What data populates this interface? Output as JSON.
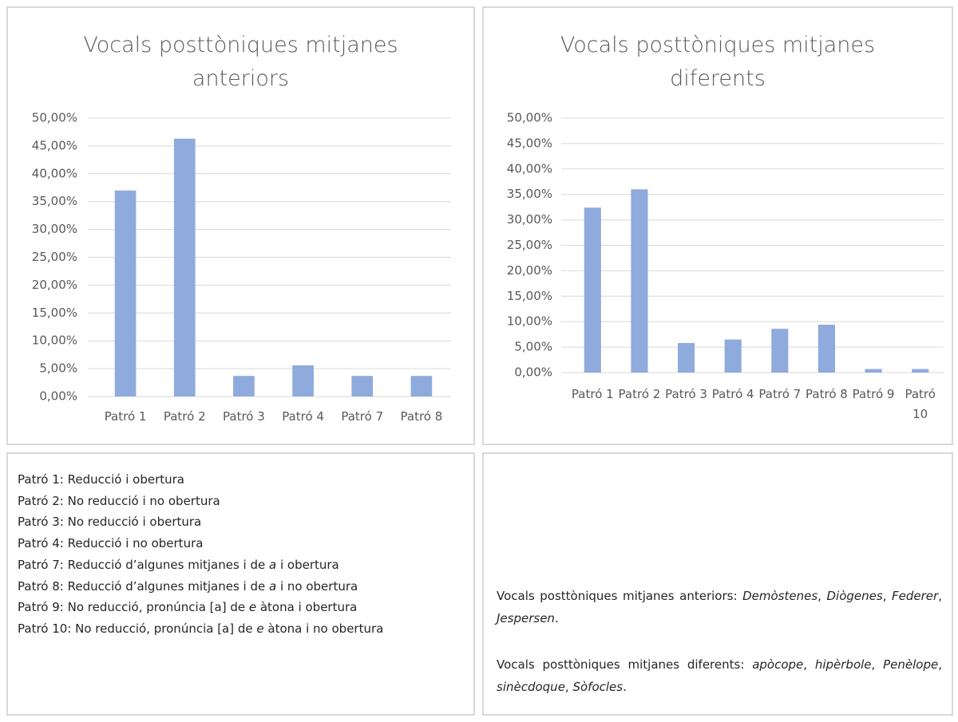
{
  "chart_data": [
    {
      "type": "bar",
      "title": "Vocals posttòniques mitjanes anteriors",
      "categories": [
        "Patró 1",
        "Patró 2",
        "Patró 3",
        "Patró 4",
        "Patró 7",
        "Patró 8"
      ],
      "values": [
        37.0,
        46.3,
        3.7,
        5.6,
        3.7,
        3.7
      ],
      "color": "#8faadc",
      "ylim": [
        0,
        50
      ],
      "yticks": [
        {
          "value": 0,
          "label": "0,00%"
        },
        {
          "value": 5,
          "label": "5,00%"
        },
        {
          "value": 10,
          "label": "10,00%"
        },
        {
          "value": 15,
          "label": "15,00%"
        },
        {
          "value": 20,
          "label": "20,00%"
        },
        {
          "value": 25,
          "label": "25,00%"
        },
        {
          "value": 30,
          "label": "30,00%"
        },
        {
          "value": 35,
          "label": "35,00%"
        },
        {
          "value": 40,
          "label": "40,00%"
        },
        {
          "value": 45,
          "label": "45,00%"
        },
        {
          "value": 50,
          "label": "50,00%"
        }
      ],
      "grid": true
    },
    {
      "type": "bar",
      "title": "Vocals posttòniques mitjanes diferents",
      "categories": [
        "Patró 1",
        "Patró 2",
        "Patró 3",
        "Patró 4",
        "Patró 7",
        "Patró 8",
        "Patró 9",
        "Patró 10"
      ],
      "values": [
        32.4,
        36.0,
        5.8,
        6.5,
        8.6,
        9.4,
        0.7,
        0.7
      ],
      "color": "#8faadc",
      "ylim": [
        0,
        50
      ],
      "yticks": [
        {
          "value": 0,
          "label": "0,00%"
        },
        {
          "value": 5,
          "label": "5,00%"
        },
        {
          "value": 10,
          "label": "10,00%"
        },
        {
          "value": 15,
          "label": "15,00%"
        },
        {
          "value": 20,
          "label": "20,00%"
        },
        {
          "value": 25,
          "label": "25,00%"
        },
        {
          "value": 30,
          "label": "30,00%"
        },
        {
          "value": 35,
          "label": "35,00%"
        },
        {
          "value": 40,
          "label": "40,00%"
        },
        {
          "value": 45,
          "label": "45,00%"
        },
        {
          "value": 50,
          "label": "50,00%"
        }
      ],
      "grid": true
    }
  ],
  "legend": [
    [
      {
        "text": "Patró 1: Reducció i obertura"
      }
    ],
    [
      {
        "text": "Patró 2: No reducció i no obertura"
      }
    ],
    [
      {
        "text": "Patró 3: No reducció i obertura"
      }
    ],
    [
      {
        "text": "Patró 4: Reducció i no obertura"
      }
    ],
    [
      {
        "text": "Patró 7: Reducció d’algunes mitjanes i de "
      },
      {
        "text": "a",
        "italic": true
      },
      {
        "text": " i obertura"
      }
    ],
    [
      {
        "text": "Patró 8: Reducció d’algunes mitjanes i de "
      },
      {
        "text": "a",
        "italic": true
      },
      {
        "text": " i no obertura"
      }
    ],
    [
      {
        "text": "Patró 9: No reducció, pronúncia [a] de "
      },
      {
        "text": "e",
        "italic": true
      },
      {
        "text": " àtona i obertura"
      }
    ],
    [
      {
        "text": "Patró 10: No reducció, pronúncia [a] de "
      },
      {
        "text": "e",
        "italic": true
      },
      {
        "text": " àtona i no obertura"
      }
    ]
  ],
  "notes": [
    [
      {
        "text": "Vocals posttòniques mitjanes anteriors: "
      },
      {
        "text": "Demòstenes",
        "italic": true
      },
      {
        "text": ", "
      },
      {
        "text": "Diògenes",
        "italic": true
      },
      {
        "text": ", "
      },
      {
        "text": "Federer",
        "italic": true
      },
      {
        "text": ", "
      },
      {
        "text": "Jespersen",
        "italic": true
      },
      {
        "text": "."
      }
    ],
    [
      {
        "text": "Vocals posttòniques mitjanes diferents: "
      },
      {
        "text": "apòcope",
        "italic": true
      },
      {
        "text": ", "
      },
      {
        "text": "hipèrbole",
        "italic": true
      },
      {
        "text": ", "
      },
      {
        "text": "Penèlope",
        "italic": true
      },
      {
        "text": ", "
      },
      {
        "text": "sinècdoque",
        "italic": true
      },
      {
        "text": ", "
      },
      {
        "text": "Sòfocles",
        "italic": true
      },
      {
        "text": "."
      }
    ]
  ]
}
